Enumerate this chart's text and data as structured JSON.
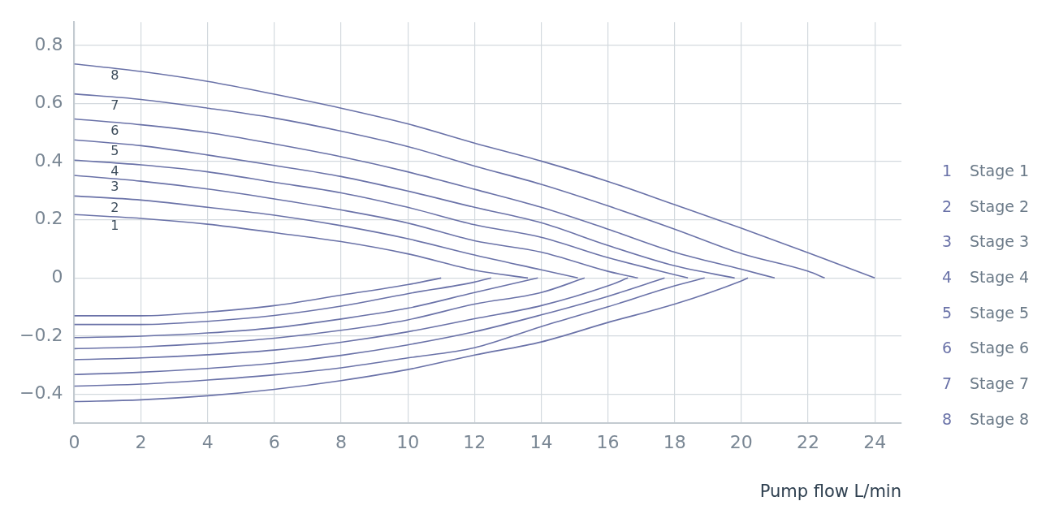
{
  "chart_data": {
    "type": "line",
    "xlabel": "Pump flow L/min",
    "xlim": [
      0,
      24.8
    ],
    "xticks": [
      0,
      2,
      4,
      6,
      8,
      10,
      12,
      14,
      16,
      18,
      20,
      22,
      24
    ],
    "ylim": [
      -0.5,
      0.88
    ],
    "yticks": [
      {
        "value": -0.4,
        "label": "−0.4"
      },
      {
        "value": -0.2,
        "label": "−0.2"
      },
      0,
      0.2,
      0.4,
      0.6,
      0.8
    ],
    "grid": true,
    "legend": "right",
    "marker": "none",
    "line_style": "solid",
    "series": [
      {
        "name": "Stage 1",
        "color": "#6a72a8",
        "x": [
          0,
          2,
          4,
          6,
          8,
          10,
          12,
          13.6
        ],
        "values": [
          0.218,
          0.205,
          0.185,
          0.156,
          0.125,
          0.083,
          0.027,
          0
        ]
      },
      {
        "name": "Stage 2",
        "color": "#6a72a8",
        "x": [
          0,
          2,
          4,
          6,
          8,
          10,
          12,
          14,
          15.1
        ],
        "values": [
          0.282,
          0.268,
          0.243,
          0.216,
          0.18,
          0.135,
          0.079,
          0.028,
          0
        ]
      },
      {
        "name": "Stage 3",
        "color": "#6a72a8",
        "x": [
          0,
          2,
          4,
          6,
          8,
          10,
          12,
          14,
          16,
          16.9
        ],
        "values": [
          0.353,
          0.333,
          0.306,
          0.272,
          0.234,
          0.189,
          0.128,
          0.089,
          0.023,
          0
        ]
      },
      {
        "name": "Stage 4",
        "color": "#6a72a8",
        "x": [
          0,
          2,
          4,
          6,
          8,
          10,
          12,
          14,
          16,
          18.4
        ],
        "values": [
          0.405,
          0.389,
          0.365,
          0.329,
          0.293,
          0.243,
          0.183,
          0.14,
          0.07,
          0
        ]
      },
      {
        "name": "Stage 5",
        "color": "#6a72a8",
        "x": [
          0,
          2,
          4,
          6,
          8,
          10,
          12,
          14,
          16,
          18,
          19.8
        ],
        "values": [
          0.475,
          0.455,
          0.423,
          0.387,
          0.349,
          0.299,
          0.243,
          0.19,
          0.112,
          0.042,
          0
        ]
      },
      {
        "name": "Stage 6",
        "color": "#6a72a8",
        "x": [
          0,
          2,
          4,
          6,
          8,
          10,
          12,
          14,
          16,
          18,
          20,
          21
        ],
        "values": [
          0.547,
          0.527,
          0.5,
          0.461,
          0.417,
          0.365,
          0.305,
          0.243,
          0.168,
          0.089,
          0.03,
          0
        ]
      },
      {
        "name": "Stage 7",
        "color": "#6a72a8",
        "x": [
          0,
          2,
          4,
          6,
          8,
          10,
          12,
          14,
          16,
          18,
          20,
          22,
          22.5
        ],
        "values": [
          0.633,
          0.614,
          0.584,
          0.55,
          0.505,
          0.452,
          0.385,
          0.322,
          0.248,
          0.168,
          0.084,
          0.023,
          0
        ]
      },
      {
        "name": "Stage 8",
        "color": "#6a72a8",
        "x": [
          0,
          2,
          4,
          6,
          8,
          10,
          12,
          14,
          16,
          18,
          20,
          22,
          24
        ],
        "values": [
          0.736,
          0.71,
          0.676,
          0.632,
          0.584,
          0.53,
          0.464,
          0.402,
          0.332,
          0.252,
          0.171,
          0.087,
          0
        ]
      },
      {
        "color": "#6a72a8",
        "x": [
          0,
          2,
          4,
          6,
          8,
          10,
          11
        ],
        "values": [
          -0.13,
          -0.13,
          -0.117,
          -0.095,
          -0.059,
          -0.023,
          0
        ]
      },
      {
        "color": "#6a72a8",
        "x": [
          0,
          2,
          4,
          6,
          8,
          10,
          12,
          12.5
        ],
        "values": [
          -0.16,
          -0.16,
          -0.149,
          -0.129,
          -0.097,
          -0.054,
          -0.014,
          0
        ]
      },
      {
        "color": "#6a72a8",
        "x": [
          0,
          2,
          4,
          6,
          8,
          10,
          12,
          13.9
        ],
        "values": [
          -0.205,
          -0.2,
          -0.189,
          -0.171,
          -0.141,
          -0.104,
          -0.05,
          0
        ]
      },
      {
        "color": "#6a72a8",
        "x": [
          0,
          2,
          4,
          6,
          8,
          10,
          12,
          14,
          15.3
        ],
        "values": [
          -0.243,
          -0.237,
          -0.225,
          -0.207,
          -0.18,
          -0.144,
          -0.09,
          -0.05,
          0
        ]
      },
      {
        "color": "#6a72a8",
        "x": [
          0,
          2,
          4,
          6,
          8,
          10,
          12,
          14,
          16,
          16.6
        ],
        "values": [
          -0.281,
          -0.275,
          -0.264,
          -0.248,
          -0.221,
          -0.185,
          -0.14,
          -0.095,
          -0.027,
          0
        ]
      },
      {
        "color": "#6a72a8",
        "x": [
          0,
          2,
          4,
          6,
          8,
          10,
          12,
          14,
          16,
          17.7
        ],
        "values": [
          -0.332,
          -0.324,
          -0.311,
          -0.293,
          -0.266,
          -0.23,
          -0.185,
          -0.127,
          -0.063,
          0
        ]
      },
      {
        "color": "#6a72a8",
        "x": [
          0,
          2,
          4,
          6,
          8,
          10,
          12,
          14,
          16,
          18,
          18.9
        ],
        "values": [
          -0.372,
          -0.365,
          -0.351,
          -0.333,
          -0.309,
          -0.275,
          -0.24,
          -0.167,
          -0.099,
          -0.027,
          0
        ]
      },
      {
        "color": "#6a72a8",
        "x": [
          0,
          2,
          4,
          6,
          8,
          10,
          12,
          14,
          16,
          18,
          20,
          20.2
        ],
        "values": [
          -0.425,
          -0.419,
          -0.405,
          -0.383,
          -0.353,
          -0.315,
          -0.265,
          -0.22,
          -0.153,
          -0.09,
          -0.01,
          0
        ]
      }
    ],
    "annotations": [
      "8",
      "7",
      "6",
      "5",
      "4",
      "3",
      "2",
      "1"
    ]
  }
}
